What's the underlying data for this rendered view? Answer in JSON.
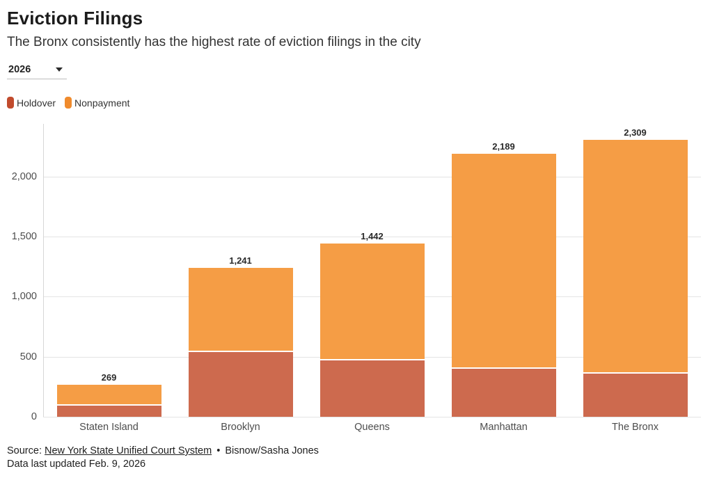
{
  "header": {
    "title": "Eviction Filings",
    "subtitle": "The Bronx consistently has the highest rate of eviction filings in the city"
  },
  "controls": {
    "year_value": "2026"
  },
  "legend": [
    {
      "label": "Holdover",
      "color": "#c14b2d"
    },
    {
      "label": "Nonpayment",
      "color": "#f08b2d"
    }
  ],
  "chart_data": {
    "type": "bar",
    "stacked": true,
    "title": "Eviction Filings",
    "xlabel": "",
    "ylabel": "",
    "categories": [
      "Staten Island",
      "Brooklyn",
      "Queens",
      "Manhattan",
      "The Bronx"
    ],
    "series": [
      {
        "name": "Holdover",
        "color": "#cd6a4e",
        "values": [
          95,
          540,
          470,
          400,
          360
        ]
      },
      {
        "name": "Nonpayment",
        "color": "#f59d45",
        "values": [
          174,
          701,
          972,
          1789,
          1949
        ]
      }
    ],
    "totals": [
      269,
      1241,
      1442,
      2189,
      2309
    ],
    "total_labels": [
      "269",
      "1,241",
      "1,442",
      "2,189",
      "2,309"
    ],
    "y_ticks": [
      0,
      500,
      1000,
      1500,
      2000
    ],
    "y_tick_labels": [
      "0",
      "500",
      "1,000",
      "1,500",
      "2,000"
    ],
    "ylim": [
      0,
      2440
    ],
    "grid": "horizontal",
    "legend_position": "top-left"
  },
  "footer": {
    "source_prefix": "Source:",
    "source_link": "New York State Unified Court System",
    "bullet": "•",
    "byline": "Bisnow/Sasha Jones",
    "updated": "Data last updated Feb. 9, 2026"
  }
}
